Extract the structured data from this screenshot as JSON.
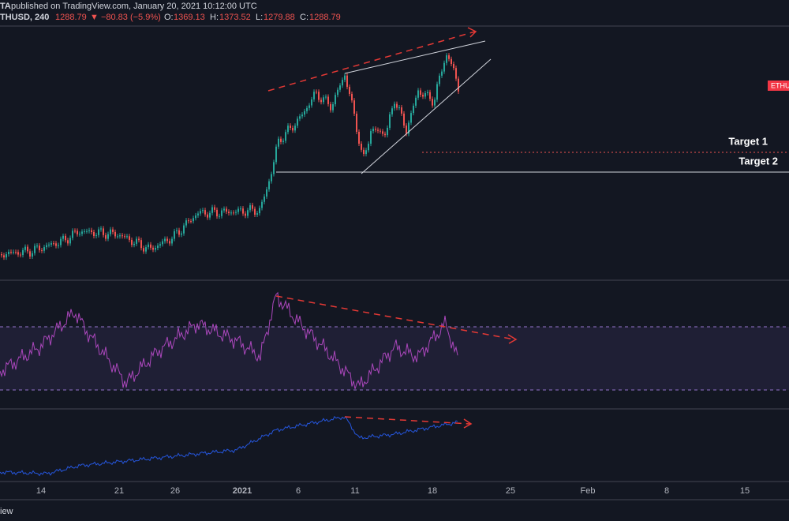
{
  "header": {
    "author": "TA",
    "published": "published on TradingView.com, January 20, 2021 10:12:00 UTC",
    "symbol": "THUSD, 240",
    "last": "1288.79",
    "change": "▼ −80.83 (−5.9%)",
    "o_label": "O:",
    "o": "1369.13",
    "h_label": "H:",
    "h": "1373.52",
    "l_label": "L:",
    "l": "1279.88",
    "c_label": "C:",
    "c": "1288.79"
  },
  "price_tag": "ETHU",
  "annotations": [
    "Target 1",
    "Target 2"
  ],
  "time_axis": [
    "14",
    "21",
    "26",
    "2021",
    "6",
    "11",
    "18",
    "25",
    "Feb",
    "8",
    "15"
  ],
  "footer": "iew"
}
